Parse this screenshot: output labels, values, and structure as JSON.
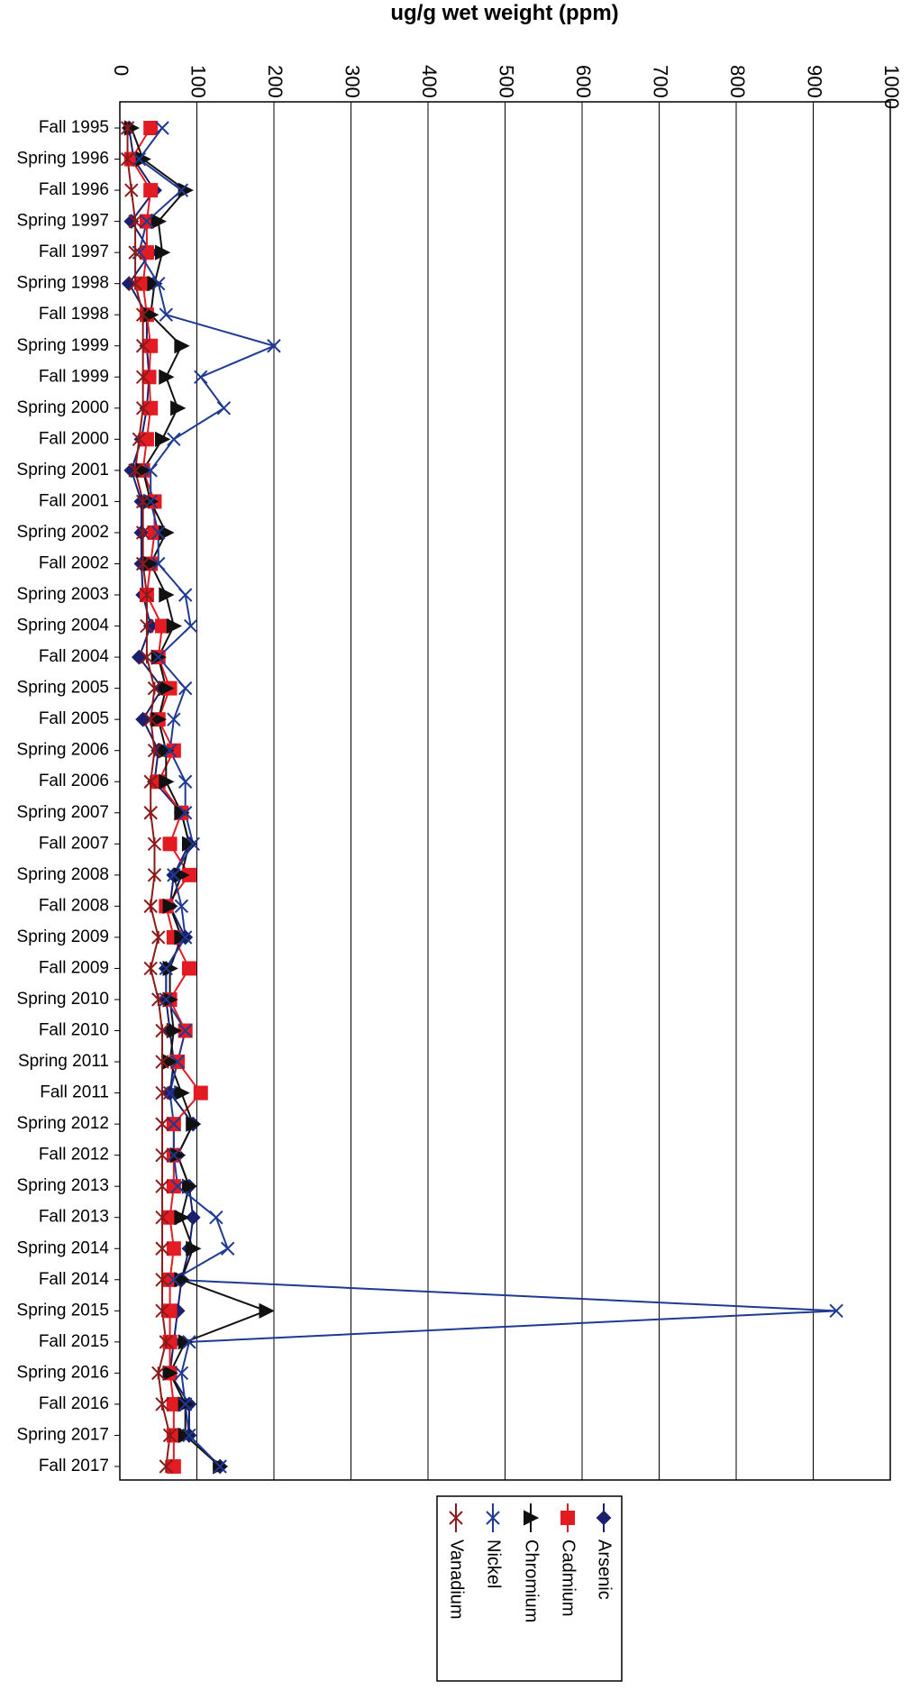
{
  "chart_data": {
    "type": "line",
    "orientation": "horizontal",
    "xlabel": "ug/g wet weight (ppm)",
    "categories": [
      "Fall 1995",
      "Spring 1996",
      "Fall 1996",
      "Spring 1997",
      "Fall 1997",
      "Spring 1998",
      "Fall 1998",
      "Spring 1999",
      "Fall 1999",
      "Spring 2000",
      "Fall 2000",
      "Spring 2001",
      "Fall 2001",
      "Spring 2002",
      "Fall 2002",
      "Spring 2003",
      "Spring 2004",
      "Fall 2004",
      "Spring 2005",
      "Fall 2005",
      "Spring 2006",
      "Fall 2006",
      "Spring 2007",
      "Fall 2007",
      "Spring 2008",
      "Fall 2008",
      "Spring 2009",
      "Fall 2009",
      "Spring 2010",
      "Fall 2010",
      "Spring 2011",
      "Fall 2011",
      "Spring 2012",
      "Fall 2012",
      "Spring 2013",
      "Fall 2013",
      "Spring 2014",
      "Fall 2014",
      "Spring 2015",
      "Fall 2015",
      "Spring 2016",
      "Fall 2016",
      "Spring 2017",
      "Fall 2017"
    ],
    "series": [
      {
        "name": "Arsenic",
        "color": "#1a1f6e",
        "marker": "diamond",
        "values": [
          12,
          18,
          45,
          15,
          40,
          12,
          35,
          35,
          38,
          35,
          28,
          15,
          28,
          28,
          28,
          30,
          40,
          25,
          55,
          30,
          50,
          45,
          80,
          90,
          70,
          65,
          85,
          60,
          60,
          65,
          70,
          65,
          95,
          75,
          90,
          95,
          90,
          80,
          75,
          70,
          65,
          90,
          90,
          130
        ]
      },
      {
        "name": "Cadmium",
        "color": "#e31b23",
        "marker": "square",
        "values": [
          40,
          15,
          40,
          35,
          35,
          30,
          35,
          40,
          38,
          40,
          35,
          30,
          45,
          45,
          40,
          35,
          55,
          50,
          65,
          50,
          70,
          50,
          80,
          65,
          90,
          60,
          70,
          90,
          65,
          85,
          75,
          105,
          70,
          70,
          70,
          65,
          70,
          65,
          65,
          65,
          65,
          70,
          70,
          70
        ]
      },
      {
        "name": "Chromium",
        "color": "#111111",
        "marker": "triangle",
        "values": [
          15,
          30,
          85,
          50,
          55,
          45,
          40,
          80,
          60,
          75,
          55,
          30,
          40,
          60,
          40,
          60,
          70,
          50,
          60,
          50,
          60,
          60,
          80,
          90,
          80,
          65,
          80,
          65,
          65,
          70,
          65,
          80,
          95,
          75,
          90,
          80,
          95,
          80,
          190,
          85,
          65,
          85,
          85,
          130
        ]
      },
      {
        "name": "Nickel",
        "color": "#1f3a93",
        "marker": "x",
        "values": [
          55,
          25,
          80,
          35,
          25,
          50,
          60,
          200,
          105,
          135,
          70,
          40,
          40,
          50,
          50,
          85,
          92,
          50,
          85,
          70,
          65,
          85,
          85,
          95,
          70,
          80,
          85,
          60,
          60,
          85,
          75,
          65,
          70,
          70,
          75,
          125,
          140,
          70,
          930,
          90,
          80,
          85,
          90,
          130
        ]
      },
      {
        "name": "Vanadium",
        "color": "#8b1a1a",
        "marker": "asterisk",
        "values": [
          10,
          10,
          15,
          20,
          20,
          20,
          30,
          30,
          30,
          30,
          25,
          20,
          30,
          30,
          30,
          35,
          35,
          35,
          45,
          40,
          45,
          40,
          40,
          45,
          45,
          40,
          50,
          40,
          50,
          55,
          55,
          55,
          55,
          55,
          55,
          55,
          55,
          55,
          55,
          60,
          50,
          55,
          65,
          60
        ]
      }
    ],
    "xlim": [
      0,
      1000
    ],
    "xticks": [
      0,
      100,
      200,
      300,
      400,
      500,
      600,
      700,
      800,
      900,
      1000
    ],
    "grid": true,
    "legend": "bottom"
  }
}
